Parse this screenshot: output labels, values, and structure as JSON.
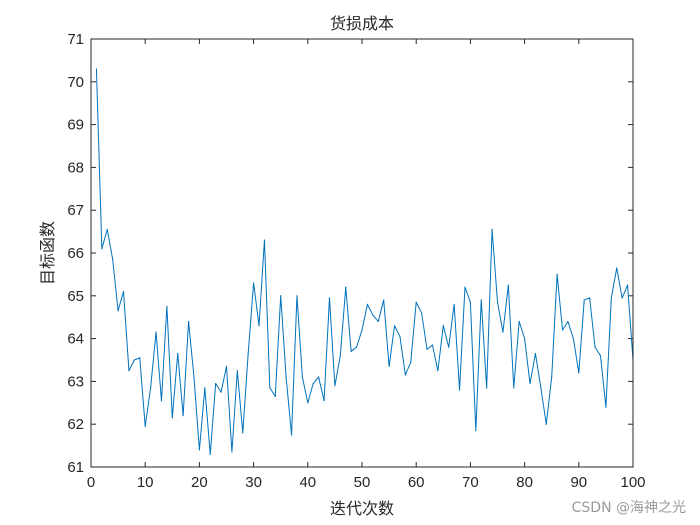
{
  "chart_data": {
    "type": "line",
    "title": "货损成本",
    "xlabel": "迭代次数",
    "ylabel": "目标函数",
    "xlim": [
      0,
      100
    ],
    "ylim": [
      61,
      71
    ],
    "xticks": [
      0,
      10,
      20,
      30,
      40,
      50,
      60,
      70,
      80,
      90,
      100
    ],
    "yticks": [
      61,
      62,
      63,
      64,
      65,
      66,
      67,
      68,
      69,
      70,
      71
    ],
    "grid": false,
    "line_color": "#0072BD",
    "series": [
      {
        "x": [
          1,
          2,
          3,
          4,
          5,
          6,
          7,
          8,
          9,
          10,
          11,
          12,
          13,
          14,
          15,
          16,
          17,
          18,
          19,
          20,
          21,
          22,
          23,
          24,
          25,
          26,
          27,
          28,
          29,
          30,
          31,
          32,
          33,
          34,
          35,
          36,
          37,
          38,
          39,
          40,
          41,
          42,
          43,
          44,
          45,
          46,
          47,
          48,
          49,
          50,
          51,
          52,
          53,
          54,
          55,
          56,
          57,
          58,
          59,
          60,
          61,
          62,
          63,
          64,
          65,
          66,
          67,
          68,
          69,
          70,
          71,
          72,
          73,
          74,
          75,
          76,
          77,
          78,
          79,
          80,
          81,
          82,
          83,
          84,
          85,
          86,
          87,
          88,
          89,
          90,
          91,
          92,
          93,
          94,
          95,
          96,
          97,
          98,
          99,
          100
        ],
        "values": [
          70.3,
          66.1,
          66.55,
          65.85,
          64.65,
          65.1,
          63.25,
          63.5,
          63.55,
          61.95,
          62.85,
          64.15,
          62.55,
          64.75,
          62.15,
          63.65,
          62.2,
          64.4,
          63.1,
          61.4,
          62.85,
          61.3,
          62.95,
          62.75,
          63.35,
          61.35,
          63.25,
          61.8,
          63.65,
          65.3,
          64.3,
          66.3,
          62.85,
          62.65,
          65.0,
          63.1,
          61.75,
          65.0,
          63.1,
          62.5,
          62.95,
          63.1,
          62.55,
          64.95,
          62.9,
          63.6,
          65.2,
          63.7,
          63.8,
          64.2,
          64.8,
          64.55,
          64.4,
          64.9,
          63.35,
          64.3,
          64.05,
          63.15,
          63.45,
          64.85,
          64.6,
          63.75,
          63.85,
          63.25,
          64.3,
          63.8,
          64.8,
          62.8,
          65.2,
          64.85,
          61.85,
          64.9,
          62.85,
          66.55,
          64.85,
          64.15,
          65.25,
          62.85,
          64.4,
          64.0,
          62.95,
          63.65,
          62.85,
          62.0,
          63.1,
          65.5,
          64.2,
          64.4,
          64.0,
          63.2,
          64.9,
          64.95,
          63.8,
          63.6,
          62.4,
          64.95,
          65.65,
          64.95,
          65.25,
          63.5
        ]
      }
    ]
  },
  "watermark": "CSDN @海神之光"
}
